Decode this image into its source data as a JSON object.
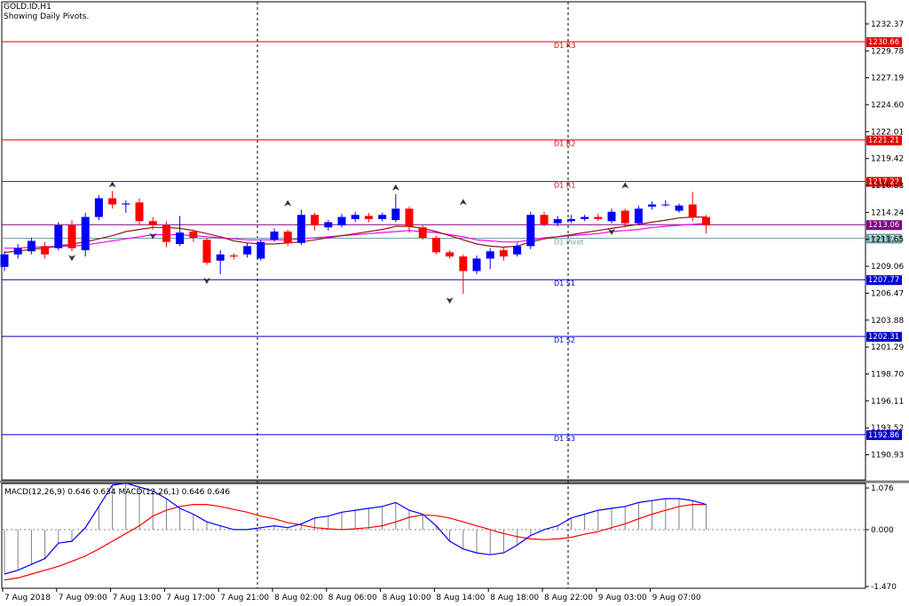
{
  "header": {
    "symbol": "GOLD.ID,H1",
    "subtitle": "Showing Daily Pivots."
  },
  "macd_header": "MACD(12,26,9) 0.646 0.634 MACD(12,26,1) 0.646 0.646",
  "colors": {
    "bull": "#0000ff",
    "bear": "#ff0000",
    "resistance": "#e00000",
    "support": "#0000cc",
    "pivot": "#6ca3a3",
    "close_line": "#800080",
    "ma_fast": "#8b1a1a",
    "ma_slow": "#ff00ff",
    "macd_main": "#0000ff",
    "macd_signal": "#ff0000"
  },
  "chart_data": [
    {
      "type": "candlestick",
      "title": "GOLD.ID,H1",
      "ylim": [
        1188.5,
        1234.5
      ],
      "y_ticks": [
        "1232.37",
        "1229.78",
        "1227.19",
        "1224.60",
        "1222.01",
        "1219.42",
        "1216.83",
        "1214.24",
        "1211.65",
        "1209.06",
        "1206.47",
        "1203.88",
        "1201.29",
        "1198.70",
        "1196.11",
        "1193.52",
        "1190.93"
      ],
      "x_labels": [
        "7 Aug 2018",
        "7 Aug 09:00",
        "7 Aug 13:00",
        "7 Aug 17:00",
        "7 Aug 21:00",
        "8 Aug 02:00",
        "8 Aug 06:00",
        "8 Aug 10:00",
        "8 Aug 14:00",
        "8 Aug 18:00",
        "8 Aug 22:00",
        "9 Aug 03:00",
        "9 Aug 07:00"
      ],
      "levels": [
        {
          "label": "D1 R3",
          "value": 1230.66,
          "kind": "resistance"
        },
        {
          "label": "D1 R2",
          "value": 1221.21,
          "kind": "resistance"
        },
        {
          "label": "D1 R1",
          "value": 1217.22,
          "kind": "resistance"
        },
        {
          "label": "D1 Pivot",
          "value": 1211.76,
          "kind": "pivot"
        },
        {
          "label": "D1 S1",
          "value": 1207.77,
          "kind": "support"
        },
        {
          "label": "D1 S2",
          "value": 1202.31,
          "kind": "support"
        },
        {
          "label": "D1 S3",
          "value": 1192.86,
          "kind": "support"
        }
      ],
      "current_price": 1213.06,
      "candles": [
        [
          1209.0,
          1210.2,
          1210.5,
          1208.6
        ],
        [
          1210.2,
          1210.8,
          1211.2,
          1209.8
        ],
        [
          1210.5,
          1211.5,
          1211.8,
          1210.2
        ],
        [
          1211.0,
          1210.2,
          1211.4,
          1209.8
        ],
        [
          1210.8,
          1213.0,
          1213.3,
          1210.6
        ],
        [
          1213.0,
          1210.8,
          1213.5,
          1210.5
        ],
        [
          1210.6,
          1213.8,
          1214.2,
          1210.0
        ],
        [
          1213.8,
          1215.6,
          1215.9,
          1213.5
        ],
        [
          1215.6,
          1215.0,
          1216.3,
          1214.6
        ],
        [
          1215.0,
          1215.1,
          1215.4,
          1214.2
        ],
        [
          1215.2,
          1213.4,
          1215.6,
          1213.1
        ],
        [
          1213.4,
          1213.0,
          1213.8,
          1212.6
        ],
        [
          1213.0,
          1211.4,
          1213.4,
          1210.9
        ],
        [
          1211.2,
          1212.3,
          1213.9,
          1211.0
        ],
        [
          1212.4,
          1211.8,
          1212.6,
          1211.4
        ],
        [
          1211.6,
          1209.4,
          1211.8,
          1209.2
        ],
        [
          1209.6,
          1210.2,
          1210.6,
          1208.3
        ],
        [
          1210.1,
          1210.0,
          1210.3,
          1209.7
        ],
        [
          1210.2,
          1211.0,
          1211.3,
          1209.9
        ],
        [
          1209.8,
          1211.4,
          1211.6,
          1209.6
        ],
        [
          1211.6,
          1212.4,
          1212.7,
          1211.4
        ],
        [
          1212.4,
          1211.3,
          1212.6,
          1211.0
        ],
        [
          1211.3,
          1214.0,
          1214.5,
          1211.1
        ],
        [
          1214.0,
          1213.0,
          1214.2,
          1212.5
        ],
        [
          1212.8,
          1213.3,
          1213.5,
          1212.5
        ],
        [
          1213.0,
          1213.8,
          1214.1,
          1212.8
        ],
        [
          1213.6,
          1214.0,
          1214.3,
          1213.3
        ],
        [
          1213.9,
          1213.6,
          1214.2,
          1213.3
        ],
        [
          1213.6,
          1214.0,
          1214.2,
          1213.4
        ],
        [
          1213.5,
          1214.6,
          1216.0,
          1213.3
        ],
        [
          1214.6,
          1212.9,
          1214.8,
          1212.3
        ],
        [
          1212.8,
          1211.8,
          1213.0,
          1211.6
        ],
        [
          1211.8,
          1210.4,
          1212.0,
          1210.2
        ],
        [
          1210.4,
          1210.0,
          1210.6,
          1209.8
        ],
        [
          1210.0,
          1208.6,
          1210.2,
          1206.4
        ],
        [
          1208.6,
          1209.8,
          1210.1,
          1208.3
        ],
        [
          1209.8,
          1210.5,
          1210.8,
          1208.8
        ],
        [
          1210.6,
          1210.0,
          1210.9,
          1209.6
        ],
        [
          1210.2,
          1211.0,
          1211.3,
          1210.0
        ],
        [
          1211.0,
          1214.0,
          1214.3,
          1210.7
        ],
        [
          1214.0,
          1213.1,
          1214.3,
          1212.9
        ],
        [
          1213.2,
          1213.6,
          1213.9,
          1212.9
        ],
        [
          1213.4,
          1213.6,
          1214.0,
          1213.2
        ],
        [
          1213.6,
          1213.8,
          1214.0,
          1213.4
        ],
        [
          1213.8,
          1213.6,
          1214.1,
          1213.4
        ],
        [
          1213.4,
          1214.3,
          1214.6,
          1213.2
        ],
        [
          1214.4,
          1213.2,
          1214.6,
          1212.8
        ],
        [
          1213.2,
          1214.6,
          1214.9,
          1213.0
        ],
        [
          1214.8,
          1215.0,
          1215.3,
          1214.5
        ],
        [
          1215.0,
          1215.0,
          1215.4,
          1214.8
        ],
        [
          1214.4,
          1214.9,
          1215.1,
          1214.2
        ],
        [
          1215.0,
          1213.8,
          1216.2,
          1213.4
        ],
        [
          1213.8,
          1213.0,
          1214.0,
          1212.2
        ]
      ],
      "ma_fast": [
        1210.4,
        1210.5,
        1210.7,
        1210.8,
        1211.0,
        1211.2,
        1211.4,
        1211.7,
        1212.0,
        1212.4,
        1212.6,
        1212.8,
        1212.8,
        1212.7,
        1212.5,
        1212.2,
        1211.9,
        1211.5,
        1211.3,
        1211.2,
        1211.2,
        1211.3,
        1211.4,
        1211.6,
        1211.8,
        1212.0,
        1212.2,
        1212.4,
        1212.6,
        1212.9,
        1212.9,
        1212.7,
        1212.4,
        1212.0,
        1211.6,
        1211.2,
        1211.0,
        1210.9,
        1211.0,
        1211.4,
        1211.7,
        1211.9,
        1212.1,
        1212.3,
        1212.5,
        1212.7,
        1212.9,
        1213.1,
        1213.3,
        1213.5,
        1213.7,
        1213.8,
        1213.8
      ],
      "ma_slow": [
        1210.8,
        1210.8,
        1210.9,
        1210.9,
        1211.0,
        1211.0,
        1211.1,
        1211.3,
        1211.5,
        1211.7,
        1211.9,
        1212.1,
        1212.1,
        1212.1,
        1212.0,
        1211.9,
        1211.8,
        1211.7,
        1211.6,
        1211.6,
        1211.6,
        1211.6,
        1211.7,
        1211.8,
        1211.9,
        1212.0,
        1212.1,
        1212.2,
        1212.3,
        1212.4,
        1212.5,
        1212.4,
        1212.3,
        1212.1,
        1211.9,
        1211.6,
        1211.5,
        1211.4,
        1211.4,
        1211.6,
        1211.8,
        1211.9,
        1212.0,
        1212.1,
        1212.2,
        1212.4,
        1212.5,
        1212.6,
        1212.8,
        1212.9,
        1213.0,
        1213.1,
        1213.2
      ],
      "fractals_up": [
        [
          8,
          1216.3
        ],
        [
          21,
          1214.5
        ],
        [
          29,
          1216.0
        ],
        [
          34,
          1214.6
        ],
        [
          46,
          1216.2
        ]
      ],
      "fractals_down": [
        [
          5,
          1210.5
        ],
        [
          11,
          1212.6
        ],
        [
          15,
          1208.3
        ],
        [
          33,
          1206.4
        ],
        [
          45,
          1213.0
        ]
      ]
    },
    {
      "type": "line",
      "title": "MACD(12,26,9) 0.646 0.634 MACD(12,26,1) 0.646 0.646",
      "ylim": [
        -1.47,
        1.076
      ],
      "y_ticks": [
        "1.076",
        "0.000",
        "-1.470"
      ],
      "series": [
        {
          "name": "MACD(12,26,1)",
          "values": [
            -1.15,
            -1.05,
            -0.9,
            -0.75,
            -0.35,
            -0.3,
            0.05,
            0.6,
            1.15,
            1.2,
            1.1,
            1.0,
            0.8,
            0.55,
            0.4,
            0.2,
            0.1,
            0.0,
            0.0,
            0.05,
            0.1,
            0.05,
            0.15,
            0.3,
            0.35,
            0.45,
            0.5,
            0.55,
            0.6,
            0.7,
            0.5,
            0.4,
            0.1,
            -0.3,
            -0.5,
            -0.6,
            -0.65,
            -0.6,
            -0.4,
            -0.15,
            0.0,
            0.1,
            0.3,
            0.4,
            0.5,
            0.55,
            0.6,
            0.7,
            0.75,
            0.8,
            0.8,
            0.75,
            0.65
          ]
        },
        {
          "name": "Signal",
          "values": [
            -1.3,
            -1.25,
            -1.15,
            -1.05,
            -0.95,
            -0.82,
            -0.68,
            -0.5,
            -0.3,
            -0.1,
            0.1,
            0.35,
            0.5,
            0.6,
            0.65,
            0.65,
            0.6,
            0.52,
            0.45,
            0.35,
            0.28,
            0.18,
            0.12,
            0.05,
            0.02,
            0.0,
            0.02,
            0.05,
            0.1,
            0.2,
            0.32,
            0.38,
            0.36,
            0.3,
            0.2,
            0.1,
            0.0,
            -0.1,
            -0.18,
            -0.24,
            -0.26,
            -0.24,
            -0.2,
            -0.12,
            -0.05,
            0.05,
            0.15,
            0.28,
            0.4,
            0.5,
            0.6,
            0.65,
            0.65
          ]
        }
      ]
    }
  ]
}
